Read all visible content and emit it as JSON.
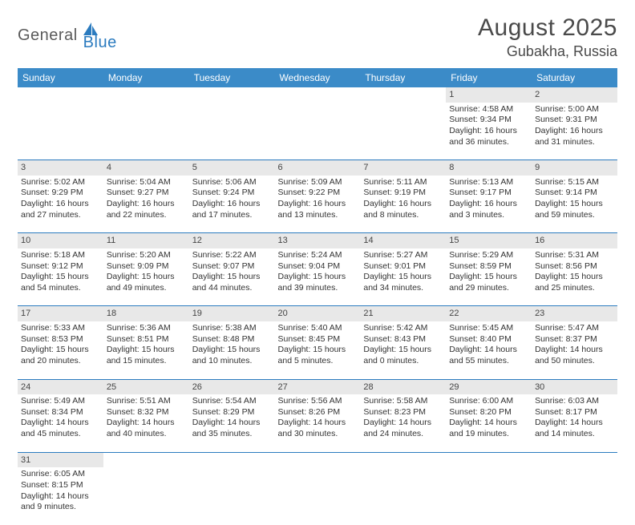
{
  "logo": {
    "text1": "General",
    "text2": "Blue"
  },
  "title": "August 2025",
  "location": "Gubakha, Russia",
  "colors": {
    "header_bg": "#3b8bc8",
    "header_text": "#ffffff",
    "daynum_bg": "#e8e8e8",
    "cell_border": "#2b7bbf",
    "text": "#333333",
    "logo_gray": "#5a5a5a",
    "logo_blue": "#2b7bbf"
  },
  "day_headers": [
    "Sunday",
    "Monday",
    "Tuesday",
    "Wednesday",
    "Thursday",
    "Friday",
    "Saturday"
  ],
  "weeks": [
    [
      null,
      null,
      null,
      null,
      null,
      {
        "n": "1",
        "sunrise": "4:58 AM",
        "sunset": "9:34 PM",
        "dl1": "Daylight: 16 hours",
        "dl2": "and 36 minutes."
      },
      {
        "n": "2",
        "sunrise": "5:00 AM",
        "sunset": "9:31 PM",
        "dl1": "Daylight: 16 hours",
        "dl2": "and 31 minutes."
      }
    ],
    [
      {
        "n": "3",
        "sunrise": "5:02 AM",
        "sunset": "9:29 PM",
        "dl1": "Daylight: 16 hours",
        "dl2": "and 27 minutes."
      },
      {
        "n": "4",
        "sunrise": "5:04 AM",
        "sunset": "9:27 PM",
        "dl1": "Daylight: 16 hours",
        "dl2": "and 22 minutes."
      },
      {
        "n": "5",
        "sunrise": "5:06 AM",
        "sunset": "9:24 PM",
        "dl1": "Daylight: 16 hours",
        "dl2": "and 17 minutes."
      },
      {
        "n": "6",
        "sunrise": "5:09 AM",
        "sunset": "9:22 PM",
        "dl1": "Daylight: 16 hours",
        "dl2": "and 13 minutes."
      },
      {
        "n": "7",
        "sunrise": "5:11 AM",
        "sunset": "9:19 PM",
        "dl1": "Daylight: 16 hours",
        "dl2": "and 8 minutes."
      },
      {
        "n": "8",
        "sunrise": "5:13 AM",
        "sunset": "9:17 PM",
        "dl1": "Daylight: 16 hours",
        "dl2": "and 3 minutes."
      },
      {
        "n": "9",
        "sunrise": "5:15 AM",
        "sunset": "9:14 PM",
        "dl1": "Daylight: 15 hours",
        "dl2": "and 59 minutes."
      }
    ],
    [
      {
        "n": "10",
        "sunrise": "5:18 AM",
        "sunset": "9:12 PM",
        "dl1": "Daylight: 15 hours",
        "dl2": "and 54 minutes."
      },
      {
        "n": "11",
        "sunrise": "5:20 AM",
        "sunset": "9:09 PM",
        "dl1": "Daylight: 15 hours",
        "dl2": "and 49 minutes."
      },
      {
        "n": "12",
        "sunrise": "5:22 AM",
        "sunset": "9:07 PM",
        "dl1": "Daylight: 15 hours",
        "dl2": "and 44 minutes."
      },
      {
        "n": "13",
        "sunrise": "5:24 AM",
        "sunset": "9:04 PM",
        "dl1": "Daylight: 15 hours",
        "dl2": "and 39 minutes."
      },
      {
        "n": "14",
        "sunrise": "5:27 AM",
        "sunset": "9:01 PM",
        "dl1": "Daylight: 15 hours",
        "dl2": "and 34 minutes."
      },
      {
        "n": "15",
        "sunrise": "5:29 AM",
        "sunset": "8:59 PM",
        "dl1": "Daylight: 15 hours",
        "dl2": "and 29 minutes."
      },
      {
        "n": "16",
        "sunrise": "5:31 AM",
        "sunset": "8:56 PM",
        "dl1": "Daylight: 15 hours",
        "dl2": "and 25 minutes."
      }
    ],
    [
      {
        "n": "17",
        "sunrise": "5:33 AM",
        "sunset": "8:53 PM",
        "dl1": "Daylight: 15 hours",
        "dl2": "and 20 minutes."
      },
      {
        "n": "18",
        "sunrise": "5:36 AM",
        "sunset": "8:51 PM",
        "dl1": "Daylight: 15 hours",
        "dl2": "and 15 minutes."
      },
      {
        "n": "19",
        "sunrise": "5:38 AM",
        "sunset": "8:48 PM",
        "dl1": "Daylight: 15 hours",
        "dl2": "and 10 minutes."
      },
      {
        "n": "20",
        "sunrise": "5:40 AM",
        "sunset": "8:45 PM",
        "dl1": "Daylight: 15 hours",
        "dl2": "and 5 minutes."
      },
      {
        "n": "21",
        "sunrise": "5:42 AM",
        "sunset": "8:43 PM",
        "dl1": "Daylight: 15 hours",
        "dl2": "and 0 minutes."
      },
      {
        "n": "22",
        "sunrise": "5:45 AM",
        "sunset": "8:40 PM",
        "dl1": "Daylight: 14 hours",
        "dl2": "and 55 minutes."
      },
      {
        "n": "23",
        "sunrise": "5:47 AM",
        "sunset": "8:37 PM",
        "dl1": "Daylight: 14 hours",
        "dl2": "and 50 minutes."
      }
    ],
    [
      {
        "n": "24",
        "sunrise": "5:49 AM",
        "sunset": "8:34 PM",
        "dl1": "Daylight: 14 hours",
        "dl2": "and 45 minutes."
      },
      {
        "n": "25",
        "sunrise": "5:51 AM",
        "sunset": "8:32 PM",
        "dl1": "Daylight: 14 hours",
        "dl2": "and 40 minutes."
      },
      {
        "n": "26",
        "sunrise": "5:54 AM",
        "sunset": "8:29 PM",
        "dl1": "Daylight: 14 hours",
        "dl2": "and 35 minutes."
      },
      {
        "n": "27",
        "sunrise": "5:56 AM",
        "sunset": "8:26 PM",
        "dl1": "Daylight: 14 hours",
        "dl2": "and 30 minutes."
      },
      {
        "n": "28",
        "sunrise": "5:58 AM",
        "sunset": "8:23 PM",
        "dl1": "Daylight: 14 hours",
        "dl2": "and 24 minutes."
      },
      {
        "n": "29",
        "sunrise": "6:00 AM",
        "sunset": "8:20 PM",
        "dl1": "Daylight: 14 hours",
        "dl2": "and 19 minutes."
      },
      {
        "n": "30",
        "sunrise": "6:03 AM",
        "sunset": "8:17 PM",
        "dl1": "Daylight: 14 hours",
        "dl2": "and 14 minutes."
      }
    ],
    [
      {
        "n": "31",
        "sunrise": "6:05 AM",
        "sunset": "8:15 PM",
        "dl1": "Daylight: 14 hours",
        "dl2": "and 9 minutes."
      },
      null,
      null,
      null,
      null,
      null,
      null
    ]
  ],
  "labels": {
    "sunrise": "Sunrise: ",
    "sunset": "Sunset: "
  }
}
